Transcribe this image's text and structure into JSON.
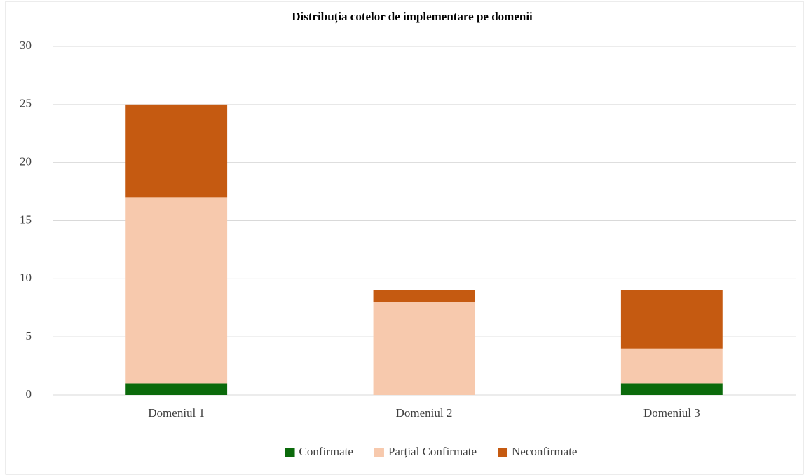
{
  "chart_data": {
    "type": "stacked-bar",
    "title": "Distribuția cotelor de implementare pe domenii",
    "categories": [
      "Domeniul 1",
      "Domeniul 2",
      "Domeniul 3"
    ],
    "series": [
      {
        "name": "Confirmate",
        "color": "#0b6a0b",
        "values": [
          1,
          0,
          1
        ]
      },
      {
        "name": "Parțial Confirmate",
        "color": "#f7c9ad",
        "values": [
          16,
          8,
          3
        ]
      },
      {
        "name": "Neconfirmate",
        "color": "#c55a11",
        "values": [
          8,
          1,
          5
        ]
      }
    ],
    "ylim": [
      0,
      30
    ],
    "yticks": [
      0,
      5,
      10,
      15,
      20,
      25,
      30
    ],
    "grid": true,
    "legend": "bottom"
  }
}
